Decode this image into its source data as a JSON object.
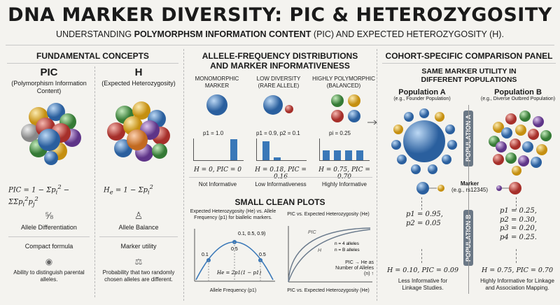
{
  "header": {
    "title": "DNA MARKER DIVERSITY: PIC & HETEROZYGOSITY",
    "subtitle_prefix": "UNDERSTANDING",
    "subtitle_bold": "POLYMORPHSM INFORMATION CONTENT",
    "subtitle_suffix": "(PIC) AND EXPECTED HETEROZYGOSITY (H)."
  },
  "left": {
    "heading": "FUNDAMENTAL CONCEPTS",
    "pic": {
      "title": "PIC",
      "desc": "(Polymorphism Information Content)",
      "label": "Allele Differentiation",
      "formula_label": "Compact formula",
      "ability": "Ability to distinguish parental alleles."
    },
    "h": {
      "title": "H",
      "desc": "(Expected Heterozygosity)",
      "label": "Allele Balance",
      "utility_label": "Marker utility",
      "probability": "Probability that two randomly chosen alleles are different."
    }
  },
  "middle": {
    "heading_line1": "ALLELE-FREQUENCY DISTRIBUTIONS",
    "heading_line2": "AND MARKER INFORMATIVENESS",
    "columns": [
      {
        "title": "MONOMORPHIC MARKER",
        "freq": "p1 = 1.0",
        "stats": "H = 0, PIC = 0",
        "verdict": "Not Informative"
      },
      {
        "title": "LOW DIVERSITY (RARE ALLELE)",
        "freq": "p1 = 0.9, p2 = 0.1",
        "stats": "H = 0.18, PIC = 0.16",
        "verdict": "Low Informativeness"
      },
      {
        "title": "HIGHLY POLYMORPHIC (BALANCED)",
        "freq": "pi = 0.25",
        "stats": "H = 0.75, PIC = 0.70",
        "verdict": "Highly Informative"
      }
    ],
    "small_plots_heading": "SMALL CLEAN PLOTS",
    "plot1": {
      "title": "Expected Heterozygosity (He) vs. Allele Frequency (p1) for biallelic markers.",
      "xlabel": "Allele Frequency (p1)",
      "formula": "He = 2p1(1 − p1)",
      "point_labels": [
        "0.1",
        "0.1, 0.5, 0.9)",
        "0.5",
        "0.5"
      ]
    },
    "plot2": {
      "title": "PIC vs. Expected Heterozygosity (He)",
      "xlabel": "PIC vs. Expected Heterozygosity (He)",
      "series_labels": [
        "PIC",
        "H"
      ],
      "legend": [
        "n = 4 alleles",
        "n = B alleles"
      ],
      "note": "PIC → He as Number of Alleles (n) ↑"
    }
  },
  "right": {
    "heading": "COHORT-SPECIFIC COMPARISON PANEL",
    "subheading_line1": "SAME MARKER UTILITY IN",
    "subheading_line2": "DIFFERENT POPULATIONS",
    "popA": {
      "title": "Population A",
      "desc": "(e.g., Founder Population)",
      "tab": "POPULATION A",
      "freqs": [
        "p1 = 0.95,",
        "p2 = 0.05"
      ],
      "stats": "H = 0.10, PIC = 0.09",
      "verdict": "Less Informative for Linkage Studies."
    },
    "popB": {
      "title": "Population B",
      "desc": "(e.g., Diverse Outbred Population)",
      "tab": "POPULATION B",
      "freqs": [
        "p1 = 0.25,",
        "p2 = 0.30,",
        "p3 = 0.20,",
        "p4 = 0.25."
      ],
      "stats": "H = 0.75, PIC = 0.70",
      "verdict": "Highly Informative for Linkage and Association Mapping."
    },
    "marker_label": "Marker",
    "marker_id": "(e.g., rs12345)"
  },
  "colors": {
    "blue": "#3a78b8",
    "red": "#c8403a",
    "green": "#4a9a4a",
    "yellow": "#e0b020",
    "purple": "#7a4aa0"
  }
}
